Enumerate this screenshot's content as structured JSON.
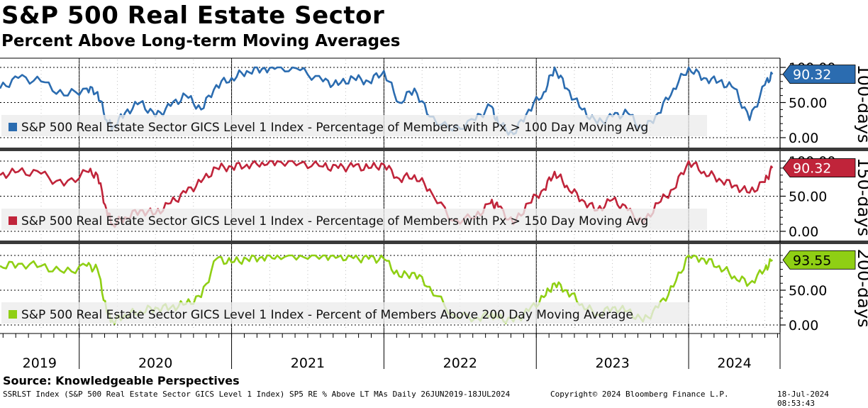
{
  "header": {
    "title": "S&P 500 Real Estate Sector",
    "subtitle": "Percent Above Long-term Moving Averages"
  },
  "footer": {
    "source": "Source: Knowledgeable Perspectives",
    "security": "SSRLST Index (S&P 500 Real Estate Sector GICS Level 1 Index) SP5 RE % Above LT MAs  Daily 26JUN2019-18JUL2024",
    "copyright": "Copyright© 2024 Bloomberg Finance L.P.",
    "timestamp": "18-Jul-2024 08:53:43"
  },
  "colors": {
    "blue": "#2b6cb0",
    "red": "#c0243a",
    "green": "#8fcf14"
  },
  "chart_data": {
    "type": "line",
    "x_axis": {
      "labels": [
        "2019",
        "2020",
        "2021",
        "2022",
        "2023",
        "2024"
      ],
      "start": "2019-06-26",
      "end": "2024-07-18"
    },
    "panels": [
      {
        "name": "100-days",
        "legend": "S&P 500 Real Estate Sector GICS Level 1 Index - Percentage of Members with Px > 100 Day Moving Avg",
        "last_value_label": "90.32",
        "ylim": [
          0,
          100
        ],
        "yticks": [
          "0.00",
          "50.00",
          "100.00"
        ],
        "color": "#2b6cb0",
        "fade_color": "#8fb0d6",
        "x": [
          2019.48,
          2019.6,
          2019.75,
          2019.9,
          2020.05,
          2020.12,
          2020.18,
          2020.22,
          2020.3,
          2020.4,
          2020.5,
          2020.6,
          2020.7,
          2020.8,
          2020.9,
          2021.0,
          2021.1,
          2021.2,
          2021.3,
          2021.45,
          2021.6,
          2021.7,
          2021.8,
          2021.9,
          2022.0,
          2022.1,
          2022.2,
          2022.3,
          2022.45,
          2022.6,
          2022.7,
          2022.75,
          2022.85,
          2022.95,
          2023.05,
          2023.12,
          2023.2,
          2023.3,
          2023.4,
          2023.5,
          2023.6,
          2023.7,
          2023.8,
          2023.9,
          2024.0,
          2024.1,
          2024.2,
          2024.3,
          2024.4,
          2024.5,
          2024.55
        ],
        "values": [
          70,
          85,
          80,
          60,
          70,
          65,
          25,
          15,
          35,
          50,
          30,
          45,
          60,
          40,
          75,
          85,
          95,
          98,
          100,
          96,
          80,
          75,
          85,
          80,
          95,
          50,
          70,
          30,
          10,
          25,
          45,
          20,
          5,
          40,
          65,
          100,
          70,
          40,
          20,
          30,
          35,
          10,
          35,
          70,
          100,
          85,
          80,
          70,
          25,
          75,
          90.32
        ]
      },
      {
        "name": "150-days",
        "legend": "S&P 500 Real Estate Sector GICS Level 1 Index - Percentage of Members with Px > 150 Day Moving Avg",
        "last_value_label": "90.32",
        "ylim": [
          0,
          100
        ],
        "yticks": [
          "0.00",
          "50.00",
          "100.00"
        ],
        "color": "#c0243a",
        "fade_color": "#dc8a96",
        "x": [
          2019.48,
          2019.6,
          2019.75,
          2019.9,
          2020.05,
          2020.12,
          2020.18,
          2020.22,
          2020.3,
          2020.4,
          2020.5,
          2020.6,
          2020.7,
          2020.8,
          2020.9,
          2021.0,
          2021.1,
          2021.2,
          2021.3,
          2021.45,
          2021.6,
          2021.7,
          2021.8,
          2021.9,
          2022.0,
          2022.1,
          2022.2,
          2022.3,
          2022.45,
          2022.6,
          2022.7,
          2022.75,
          2022.85,
          2022.95,
          2023.05,
          2023.12,
          2023.2,
          2023.3,
          2023.4,
          2023.5,
          2023.6,
          2023.7,
          2023.8,
          2023.9,
          2024.0,
          2024.1,
          2024.2,
          2024.3,
          2024.4,
          2024.5,
          2024.55
        ],
        "values": [
          80,
          85,
          82,
          65,
          85,
          80,
          30,
          10,
          20,
          30,
          25,
          40,
          55,
          70,
          90,
          92,
          95,
          98,
          100,
          97,
          92,
          90,
          92,
          90,
          95,
          75,
          80,
          60,
          15,
          20,
          40,
          35,
          10,
          40,
          60,
          85,
          65,
          45,
          30,
          45,
          30,
          10,
          40,
          60,
          100,
          85,
          75,
          65,
          55,
          70,
          90.32
        ]
      },
      {
        "name": "200-days",
        "legend": "S&P 500 Real Estate Sector GICS Level 1 Index - Percent of Members Above 200 Day Moving Average",
        "last_value_label": "93.55",
        "ylim": [
          0,
          100
        ],
        "yticks": [
          "0.00",
          "50.00"
        ],
        "color": "#8fcf14",
        "fade_color": "#c4e68a",
        "x": [
          2019.48,
          2019.6,
          2019.75,
          2019.9,
          2020.05,
          2020.12,
          2020.18,
          2020.22,
          2020.3,
          2020.4,
          2020.5,
          2020.6,
          2020.7,
          2020.8,
          2020.9,
          2021.0,
          2021.1,
          2021.2,
          2021.3,
          2021.45,
          2021.6,
          2021.7,
          2021.8,
          2021.9,
          2022.0,
          2022.1,
          2022.2,
          2022.3,
          2022.45,
          2022.6,
          2022.7,
          2022.75,
          2022.85,
          2022.95,
          2023.05,
          2023.12,
          2023.2,
          2023.3,
          2023.4,
          2023.5,
          2023.6,
          2023.7,
          2023.8,
          2023.9,
          2024.0,
          2024.1,
          2024.2,
          2024.3,
          2024.4,
          2024.5,
          2024.55
        ],
        "values": [
          85,
          88,
          85,
          75,
          85,
          80,
          20,
          5,
          15,
          20,
          25,
          25,
          30,
          40,
          95,
          90,
          95,
          98,
          100,
          100,
          100,
          98,
          96,
          95,
          95,
          70,
          75,
          55,
          15,
          10,
          15,
          10,
          5,
          20,
          40,
          60,
          50,
          30,
          15,
          25,
          20,
          5,
          25,
          55,
          100,
          95,
          85,
          70,
          60,
          80,
          93.55
        ]
      }
    ]
  }
}
